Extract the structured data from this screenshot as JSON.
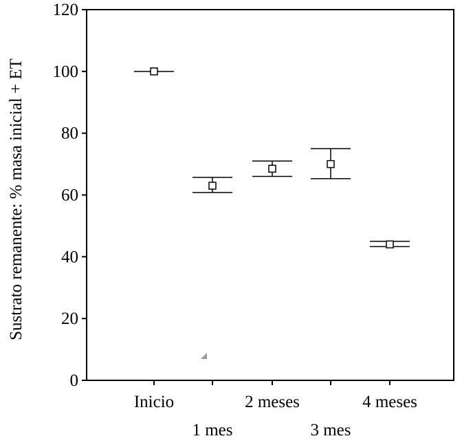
{
  "chart_data": {
    "type": "scatter",
    "title": "",
    "xlabel": "",
    "ylabel": "Sustrato remanente: % masa inicial + ET",
    "ylim": [
      0,
      120
    ],
    "yticks": [
      "0",
      "20",
      "40",
      "60",
      "80",
      "100",
      "120"
    ],
    "categories": [
      "Inicio",
      "1 mes",
      "2 meses",
      "3 mes",
      "4 meses"
    ],
    "series": [
      {
        "marker": "square",
        "values": [
          100,
          63,
          68.5,
          70,
          44
        ],
        "err_low": [
          100,
          60.8,
          66,
          65.3,
          43.3
        ],
        "err_high": [
          100,
          65.7,
          71,
          75,
          45
        ]
      }
    ],
    "grid": false,
    "legend": "none",
    "color": "#000000",
    "annotation_marker_color": "#999999"
  }
}
